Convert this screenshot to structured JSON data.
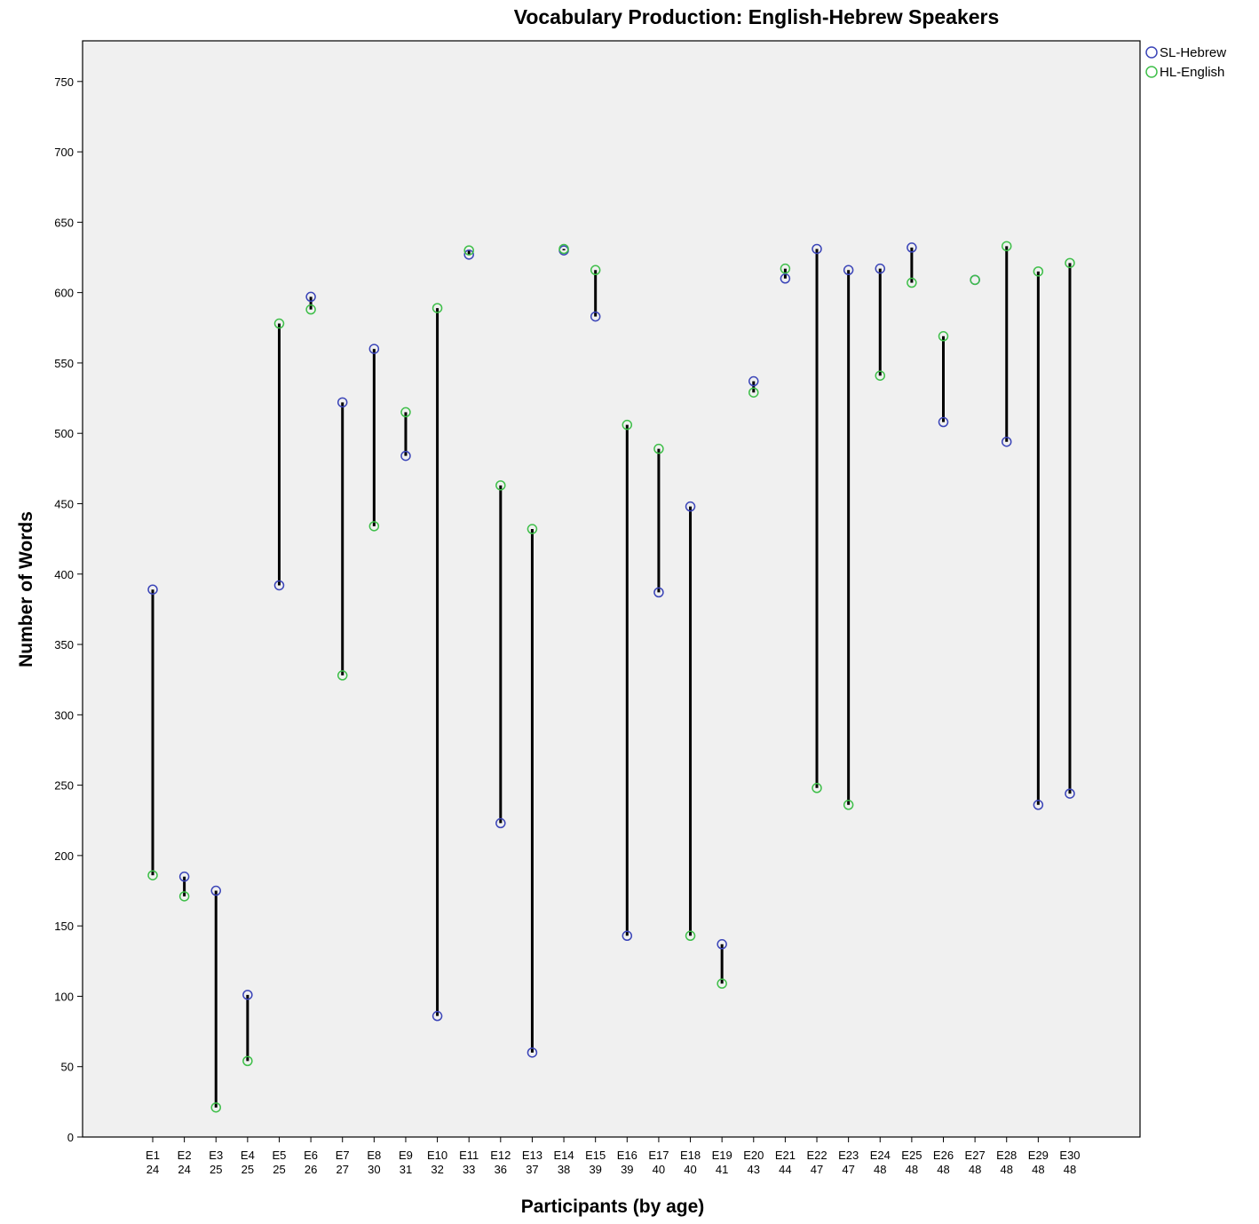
{
  "chart_data": {
    "type": "scatter",
    "title": "Vocabulary Production: English-Hebrew Speakers",
    "xlabel": "Participants (by age)",
    "ylabel": "Number of Words",
    "ylim": [
      0,
      780
    ],
    "yticks": [
      0,
      50,
      100,
      150,
      200,
      250,
      300,
      350,
      400,
      450,
      500,
      550,
      600,
      650,
      700,
      750
    ],
    "grid": false,
    "legend_position": "top-right",
    "categories": [
      {
        "id": "E1",
        "age": "24"
      },
      {
        "id": "E2",
        "age": "24"
      },
      {
        "id": "E3",
        "age": "25"
      },
      {
        "id": "E4",
        "age": "25"
      },
      {
        "id": "E5",
        "age": "25"
      },
      {
        "id": "E6",
        "age": "26"
      },
      {
        "id": "E7",
        "age": "27"
      },
      {
        "id": "E8",
        "age": "30"
      },
      {
        "id": "E9",
        "age": "31"
      },
      {
        "id": "E10",
        "age": "32"
      },
      {
        "id": "E11",
        "age": "33"
      },
      {
        "id": "E12",
        "age": "36"
      },
      {
        "id": "E13",
        "age": "37"
      },
      {
        "id": "E14",
        "age": "38"
      },
      {
        "id": "E15",
        "age": "39"
      },
      {
        "id": "E16",
        "age": "39"
      },
      {
        "id": "E17",
        "age": "40"
      },
      {
        "id": "E18",
        "age": "40"
      },
      {
        "id": "E19",
        "age": "41"
      },
      {
        "id": "E20",
        "age": "43"
      },
      {
        "id": "E21",
        "age": "44"
      },
      {
        "id": "E22",
        "age": "47"
      },
      {
        "id": "E23",
        "age": "47"
      },
      {
        "id": "E24",
        "age": "48"
      },
      {
        "id": "E25",
        "age": "48"
      },
      {
        "id": "E26",
        "age": "48"
      },
      {
        "id": "E27",
        "age": "48"
      },
      {
        "id": "E28",
        "age": "48"
      },
      {
        "id": "E29",
        "age": "48"
      },
      {
        "id": "E30",
        "age": "48"
      }
    ],
    "series": [
      {
        "name": "SL-Hebrew",
        "color": "#3b45b8",
        "values": [
          389,
          185,
          175,
          101,
          392,
          597,
          522,
          560,
          484,
          86,
          627,
          223,
          60,
          630,
          583,
          143,
          387,
          448,
          137,
          537,
          610,
          631,
          616,
          617,
          632,
          508,
          609,
          494,
          236,
          244
        ]
      },
      {
        "name": "HL-English",
        "color": "#3fbf4a",
        "values": [
          186,
          171,
          21,
          54,
          578,
          588,
          328,
          434,
          515,
          589,
          630,
          463,
          432,
          631,
          616,
          506,
          489,
          143,
          109,
          529,
          617,
          248,
          236,
          541,
          607,
          569,
          609,
          633,
          615,
          621
        ]
      }
    ]
  }
}
